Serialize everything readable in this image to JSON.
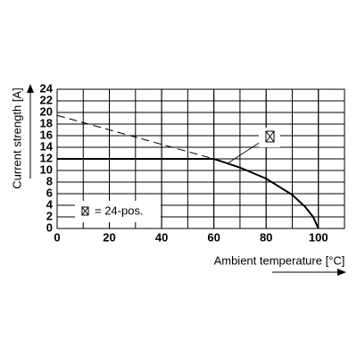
{
  "chart_data": {
    "type": "line",
    "xlabel": "Ambient temperature [°C]",
    "ylabel": "Current strength [A]",
    "xlim": [
      0,
      110
    ],
    "xticks": [
      0,
      20,
      40,
      60,
      80,
      100
    ],
    "ylim": [
      0,
      24
    ],
    "yticks": [
      0,
      2,
      4,
      6,
      8,
      10,
      12,
      14,
      16,
      18,
      20,
      22,
      24
    ],
    "grid": true,
    "series": [
      {
        "name": "= 24-pos.",
        "color": "#000000",
        "style": "solid",
        "x": [
          0,
          60,
          70,
          80,
          90,
          95,
          98,
          100
        ],
        "values": [
          12,
          12,
          10.5,
          8.6,
          5.8,
          3.7,
          2,
          0
        ]
      },
      {
        "color": "#000000",
        "style": "dashed",
        "x": [
          0,
          60
        ],
        "values": [
          19.5,
          12
        ]
      }
    ]
  }
}
